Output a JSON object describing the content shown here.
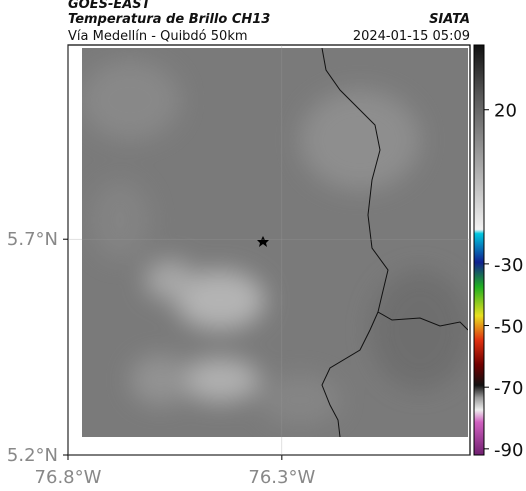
{
  "header": {
    "source": "GOES-EAST",
    "title": "Temperatura de Brillo CH13",
    "agency": "SIATA",
    "subtitle": "Vía Medellín - Quibdó 50km",
    "timestamp": "2024-01-15 05:09"
  },
  "map": {
    "xlim": [
      -76.8,
      -75.86
    ],
    "ylim": [
      5.2,
      6.15
    ],
    "xticks": [
      {
        "value": -76.8,
        "label": "76.8°W"
      },
      {
        "value": -76.3,
        "label": "76.3°W"
      }
    ],
    "yticks": [
      {
        "value": 5.7,
        "label": "5.7°N"
      },
      {
        "value": 5.2,
        "label": "5.2°N"
      }
    ]
  },
  "colorbar": {
    "lim": [
      -92,
      41
    ],
    "ticks": [
      20,
      -30,
      -50,
      -70,
      -90
    ]
  }
}
